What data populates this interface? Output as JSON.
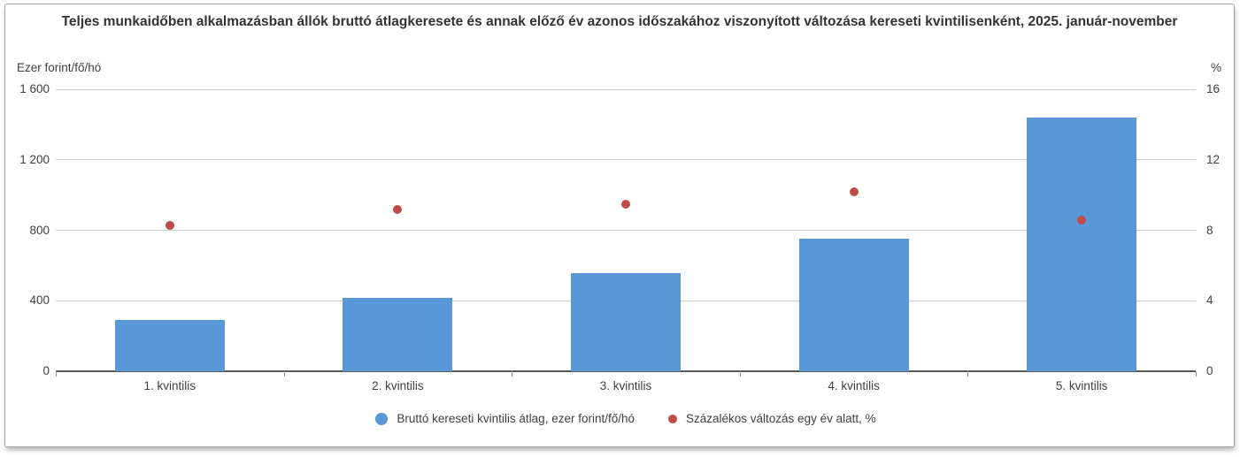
{
  "title": "Teljes munkaidőben alkalmazásban állók bruttó átlagkeresete és annak előző év azonos időszakához viszonyított változása kereseti kvintilisenként, 2025. január-november",
  "left_axis": {
    "unit": "Ezer forint/fő/hó",
    "max": 1600,
    "ticks": [
      {
        "label": "0",
        "value": 0
      },
      {
        "label": "400",
        "value": 400
      },
      {
        "label": "800",
        "value": 800
      },
      {
        "label": "1 200",
        "value": 1200
      },
      {
        "label": "1 600",
        "value": 1600
      }
    ]
  },
  "right_axis": {
    "unit": "%",
    "max": 16,
    "ticks": [
      {
        "label": "0",
        "value": 0
      },
      {
        "label": "4",
        "value": 4
      },
      {
        "label": "8",
        "value": 8
      },
      {
        "label": "12",
        "value": 12
      },
      {
        "label": "16",
        "value": 16
      }
    ]
  },
  "chart_data": {
    "type": "bar",
    "title": "Teljes munkaidőben alkalmazásban állók bruttó átlagkeresete és annak előző év azonos időszakához viszonyított változása kereseti kvintilisenként, 2025. január-november",
    "categories": [
      "1. kvintilis",
      "2. kvintilis",
      "3. kvintilis",
      "4. kvintilis",
      "5. kvintilis"
    ],
    "series": [
      {
        "name": "Bruttó kereseti kvintilis átlag, ezer forint/fő/hó",
        "type": "bar",
        "axis": "left",
        "color": "#5997D6",
        "values": [
          289,
          416,
          559,
          752,
          1439
        ]
      },
      {
        "name": "Százalékos változás egy év alatt, %",
        "type": "scatter",
        "axis": "right",
        "color": "#BE4B48",
        "values": [
          8.3,
          9.2,
          9.5,
          10.2,
          8.6
        ]
      }
    ],
    "ylim_left": [
      0,
      1600
    ],
    "ylim_right": [
      0,
      16
    ],
    "grid": true,
    "legend_position": "bottom"
  },
  "legend": {
    "items": [
      {
        "label": "Bruttó kereseti kvintilis átlag, ezer forint/fő/hó",
        "color": "#5997D6",
        "marker_size": 14
      },
      {
        "label": "Százalékos változás egy év alatt, %",
        "color": "#BE4B48",
        "marker_size": 10
      }
    ]
  }
}
